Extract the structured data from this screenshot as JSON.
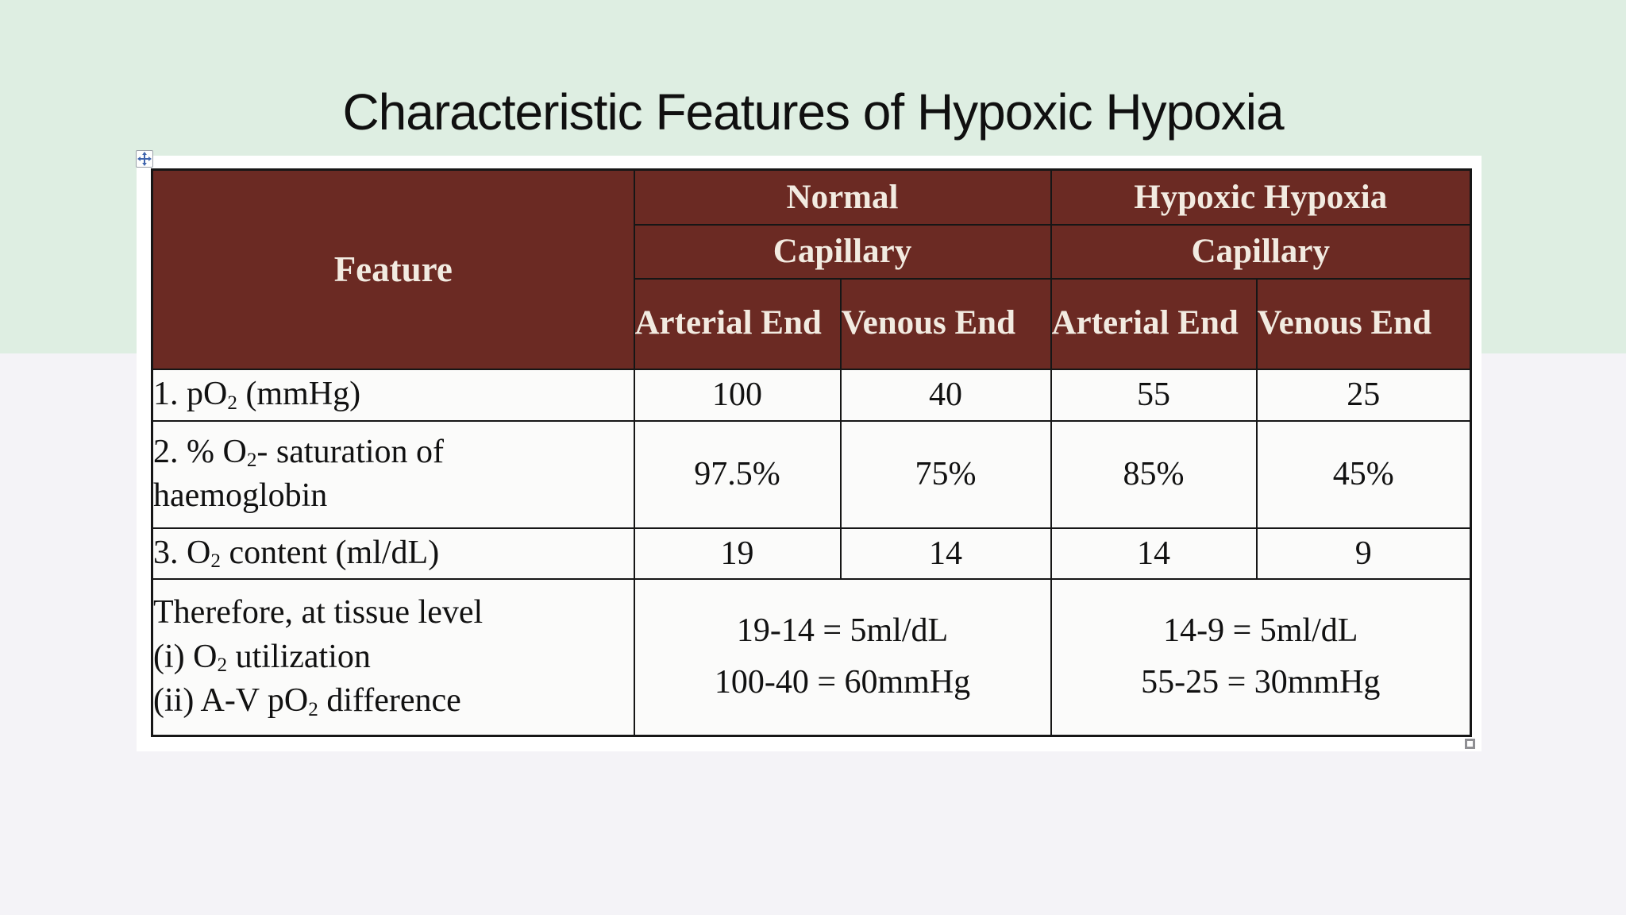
{
  "title": "Characteristic Features of Hypoxic Hypoxia",
  "colors": {
    "header_bg": "#6b2a23",
    "header_text": "#f2ebe1",
    "grid_border": "#161616",
    "body_text": "#111111",
    "top_background": "#deeee2",
    "bottom_background": "#f4f3f7",
    "table_backdrop": "#ffffff",
    "cell_background": "#fbfbfa",
    "move_handle_blue": "#3f64ad"
  },
  "icons": {
    "move_handle": "four-way-arrow-icon",
    "resize_handle": "square-resize-grip-icon"
  },
  "table": {
    "feature_header": "Feature",
    "groups": [
      {
        "label": "Normal",
        "sub": "Capillary",
        "cols": [
          "Arterial End",
          "Venous End"
        ]
      },
      {
        "label": "Hypoxic Hypoxia",
        "sub": "Capillary",
        "cols": [
          "Arterial End",
          "Venous End"
        ]
      }
    ],
    "rows": [
      {
        "label_lines": [
          "1. pO~2~ (mmHg)"
        ],
        "values": [
          "100",
          "40",
          "55",
          "25"
        ]
      },
      {
        "label_lines": [
          "2. % O~2~- saturation of",
          "haemoglobin"
        ],
        "values": [
          "97.5%",
          "75%",
          "85%",
          "45%"
        ]
      },
      {
        "label_lines": [
          "3. O~2~ content (ml/dL)"
        ],
        "values": [
          "19",
          "14",
          "14",
          "9"
        ]
      }
    ],
    "summary_row": {
      "label_lines": [
        "Therefore, at tissue level",
        "(i) O~2~ utilization",
        "(ii) A-V pO~2~ difference"
      ],
      "normal_lines": [
        "19-14 = 5ml/dL",
        "100-40 = 60mmHg"
      ],
      "hypoxic_lines": [
        "14-9 = 5ml/dL",
        "55-25 = 30mmHg"
      ]
    }
  }
}
